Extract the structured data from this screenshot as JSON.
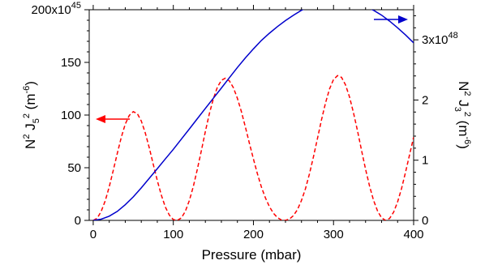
{
  "chart_data": {
    "type": "line",
    "xlabel": "Pressure (mbar)",
    "ylabel_left": {
      "base": "N",
      "sup1": "2",
      "mid": " J",
      "sub": "5",
      "sup2": "2",
      "unit_pre": " (m",
      "unit_sup": "-6",
      "unit_post": ")"
    },
    "ylabel_right": {
      "base": "N",
      "sup1": "2",
      "mid": " J",
      "sub": "3",
      "sup2": "2",
      "unit_pre": " (m",
      "unit_sup": "-6",
      "unit_post": ")"
    },
    "xlim": [
      -5,
      400
    ],
    "ylim_left": [
      0,
      200
    ],
    "ylim_right": [
      0,
      3.5
    ],
    "x_ticks": [
      0,
      100,
      200,
      300,
      400
    ],
    "y_left_ticks": [
      {
        "value": 0,
        "label": "0"
      },
      {
        "value": 50,
        "label": "50"
      },
      {
        "value": 100,
        "label": "100"
      },
      {
        "value": 150,
        "label": "150"
      },
      {
        "value": 200,
        "label": "200x10",
        "sup": "45"
      }
    ],
    "y_right_ticks": [
      {
        "value": 0,
        "label": "0"
      },
      {
        "value": 1,
        "label": "1"
      },
      {
        "value": 2,
        "label": "2"
      },
      {
        "value": 3,
        "label": "3x10",
        "sup": "48"
      }
    ],
    "series": [
      {
        "axis": "left",
        "color": "#ff0000",
        "style": "dashed",
        "x": [
          0,
          5,
          10,
          15,
          20,
          25,
          30,
          35,
          40,
          45,
          50,
          55,
          60,
          65,
          70,
          75,
          80,
          85,
          90,
          95,
          100,
          105,
          110,
          115,
          120,
          125,
          130,
          135,
          140,
          145,
          150,
          155,
          160,
          165,
          170,
          175,
          180,
          185,
          190,
          195,
          200,
          205,
          210,
          215,
          220,
          225,
          230,
          235,
          240,
          245,
          250,
          255,
          260,
          265,
          270,
          275,
          280,
          285,
          290,
          295,
          300,
          305,
          310,
          315,
          320,
          325,
          330,
          335,
          340,
          345,
          350,
          355,
          360,
          365,
          370,
          375,
          380,
          385,
          390,
          395,
          400
        ],
        "y": [
          0.0,
          2.1,
          8.6,
          18.7,
          31.9,
          47.3,
          63.5,
          78.8,
          91.3,
          99.7,
          103.2,
          101.4,
          94.4,
          83.1,
          68.8,
          53.1,
          37.7,
          24.0,
          12.8,
          5.0,
          0.8,
          0.0,
          2.3,
          8.6,
          18.9,
          32.3,
          48.5,
          66.3,
          84.4,
          101.2,
          115.5,
          126.4,
          133.0,
          135.0,
          132.5,
          125.9,
          115.9,
          103.1,
          88.5,
          73.2,
          58.2,
          44.2,
          31.7,
          21.3,
          13.0,
          6.8,
          2.6,
          0.4,
          0.0,
          1.3,
          4.6,
          10.3,
          18.9,
          30.2,
          44.3,
          60.5,
          78.0,
          95.5,
          111.6,
          124.8,
          133.7,
          137.5,
          135.8,
          128.7,
          117.1,
          102.0,
          84.7,
          66.4,
          48.7,
          32.5,
          19.0,
          8.8,
          2.4,
          0.0,
          1.9,
          7.8,
          17.5,
          30.5,
          46.0,
          62.7,
          79.0
        ]
      },
      {
        "axis": "right",
        "color": "#0000cc",
        "style": "solid",
        "x": [
          0,
          10,
          20,
          30,
          40,
          50,
          60,
          70,
          80,
          90,
          100,
          110,
          120,
          130,
          140,
          150,
          160,
          170,
          180,
          190,
          200,
          210,
          220,
          230,
          240,
          250,
          260,
          270,
          280,
          290,
          300,
          310,
          320,
          330,
          340,
          350,
          360,
          370,
          380,
          390,
          400
        ],
        "y": [
          0.0,
          0.02,
          0.07,
          0.15,
          0.26,
          0.39,
          0.54,
          0.7,
          0.86,
          1.02,
          1.18,
          1.35,
          1.52,
          1.69,
          1.86,
          2.03,
          2.2,
          2.37,
          2.54,
          2.7,
          2.85,
          2.99,
          3.11,
          3.22,
          3.32,
          3.41,
          3.49,
          3.55,
          3.6,
          3.63,
          3.65,
          3.65,
          3.63,
          3.6,
          3.55,
          3.49,
          3.41,
          3.31,
          3.2,
          3.08,
          2.95
        ]
      }
    ]
  }
}
